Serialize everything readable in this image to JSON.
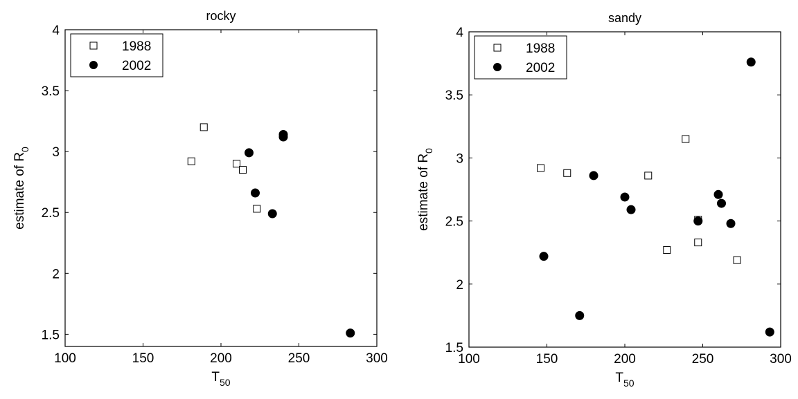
{
  "chart_data": [
    {
      "type": "scatter",
      "title": "rocky",
      "xlabel": "T",
      "xlabel_sub": "50",
      "ylabel": "estimate of R",
      "ylabel_sub": "0",
      "xlim": [
        100,
        300
      ],
      "ylim": [
        1.4,
        4
      ],
      "xticks": [
        "100",
        "150",
        "200",
        "250",
        "300"
      ],
      "yticks": [
        "1.5",
        "2",
        "2.5",
        "3",
        "3.5",
        "4"
      ],
      "legend_placement": "top-left",
      "grid": false,
      "series": [
        {
          "name": "1988",
          "marker": "open-square",
          "points": [
            [
              181,
              2.92
            ],
            [
              189,
              3.2
            ],
            [
              210,
              2.9
            ],
            [
              214,
              2.85
            ],
            [
              223,
              2.53
            ]
          ]
        },
        {
          "name": "2002",
          "marker": "filled-circle",
          "points": [
            [
              218,
              2.99
            ],
            [
              222,
              2.66
            ],
            [
              233,
              2.49
            ],
            [
              240,
              3.14
            ],
            [
              240,
              3.12
            ],
            [
              283,
              1.51
            ]
          ]
        }
      ]
    },
    {
      "type": "scatter",
      "title": "sandy",
      "xlabel": "T",
      "xlabel_sub": "50",
      "ylabel": "estimate of R",
      "ylabel_sub": "0",
      "xlim": [
        100,
        300
      ],
      "ylim": [
        1.5,
        4
      ],
      "xticks": [
        "100",
        "150",
        "200",
        "250",
        "300"
      ],
      "yticks": [
        "1.5",
        "2",
        "2.5",
        "3",
        "3.5",
        "4"
      ],
      "legend_placement": "top-left",
      "grid": false,
      "series": [
        {
          "name": "1988",
          "marker": "open-square",
          "points": [
            [
              146,
              2.92
            ],
            [
              163,
              2.88
            ],
            [
              215,
              2.86
            ],
            [
              227,
              2.27
            ],
            [
              239,
              3.15
            ],
            [
              247,
              2.51
            ],
            [
              247,
              2.33
            ],
            [
              272,
              2.19
            ]
          ]
        },
        {
          "name": "2002",
          "marker": "filled-circle",
          "points": [
            [
              148,
              2.22
            ],
            [
              171,
              1.75
            ],
            [
              180,
              2.86
            ],
            [
              200,
              2.69
            ],
            [
              204,
              2.59
            ],
            [
              247,
              2.5
            ],
            [
              260,
              2.71
            ],
            [
              262,
              2.64
            ],
            [
              268,
              2.48
            ],
            [
              281,
              3.76
            ],
            [
              293,
              1.62
            ]
          ]
        }
      ]
    }
  ]
}
